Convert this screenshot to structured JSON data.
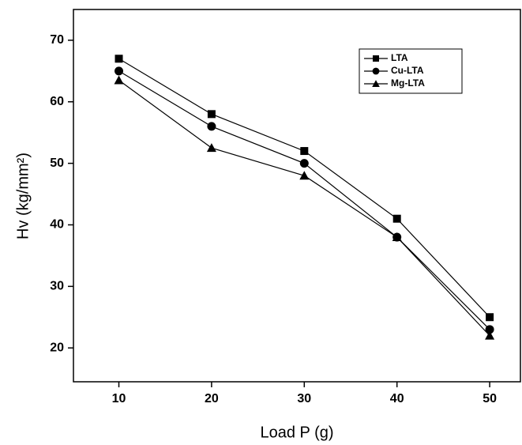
{
  "chart_data": {
    "type": "line",
    "x_label": "Load P (g)",
    "y_label": "Hv (kg/mm²)",
    "x": [
      10,
      20,
      30,
      40,
      50
    ],
    "series": [
      {
        "name": "LTA",
        "color": "#000000",
        "marker": "square",
        "values": [
          67,
          58,
          52,
          41,
          25
        ]
      },
      {
        "name": "Cu-LTA",
        "color": "#000000",
        "marker": "circle",
        "values": [
          65,
          56,
          50,
          38,
          23
        ]
      },
      {
        "name": "Mg-LTA",
        "color": "#000000",
        "marker": "triangle",
        "values": [
          63.5,
          52.5,
          48,
          38,
          22
        ]
      }
    ],
    "xlim": [
      5.1,
      53.4
    ],
    "ylim": [
      14.5,
      75
    ],
    "xticks": [
      10,
      20,
      30,
      40,
      50
    ],
    "yticks": [
      20,
      30,
      40,
      50,
      60,
      70
    ],
    "legend": "upper-right",
    "grid": false
  }
}
